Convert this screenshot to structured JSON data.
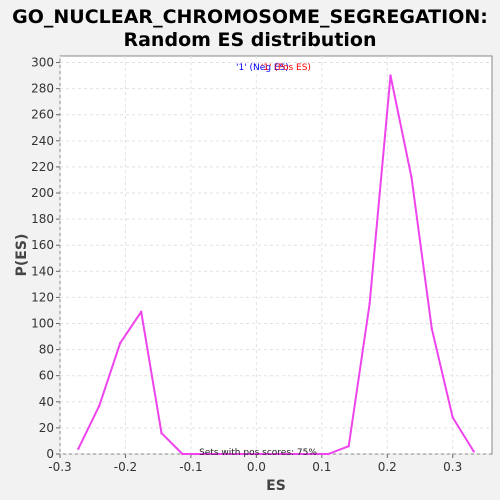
{
  "chart_data": {
    "type": "line",
    "title": "GO_NUCLEAR_CHROMOSOME_SEGREGATION:",
    "subtitle": "Random ES distribution",
    "xlabel": "ES",
    "ylabel": "P(ES)",
    "xlim": [
      -0.3,
      0.36
    ],
    "ylim": [
      0,
      305
    ],
    "x_ticks": [
      "-0.3",
      "-0.2",
      "-0.1",
      "0.0",
      "0.1",
      "0.2",
      "0.3"
    ],
    "y_ticks": [
      "0",
      "20",
      "40",
      "60",
      "80",
      "100",
      "120",
      "140",
      "160",
      "180",
      "200",
      "220",
      "240",
      "260",
      "280",
      "300"
    ],
    "grid": true,
    "legend": {
      "placement": "top-center",
      "part1": "'1' (Neg ES)",
      "part2": "'1' (Pos ES)",
      "part1_color": "#0000ff",
      "part2_color": "#ff0000"
    },
    "annotation": "Sets with pos scores: 75%",
    "series": [
      {
        "color": "#ee44ee",
        "x": [
          -0.272,
          -0.24,
          -0.208,
          -0.176,
          -0.145,
          -0.113,
          -0.081,
          -0.049,
          -0.017,
          0.014,
          0.046,
          0.078,
          0.11,
          0.141,
          0.173,
          0.205,
          0.237,
          0.268,
          0.3,
          0.332
        ],
        "y": [
          4,
          37,
          85,
          109,
          16,
          0,
          0,
          0,
          0,
          0,
          0,
          0,
          0,
          6,
          115,
          290,
          212,
          96,
          28,
          2
        ]
      }
    ]
  }
}
